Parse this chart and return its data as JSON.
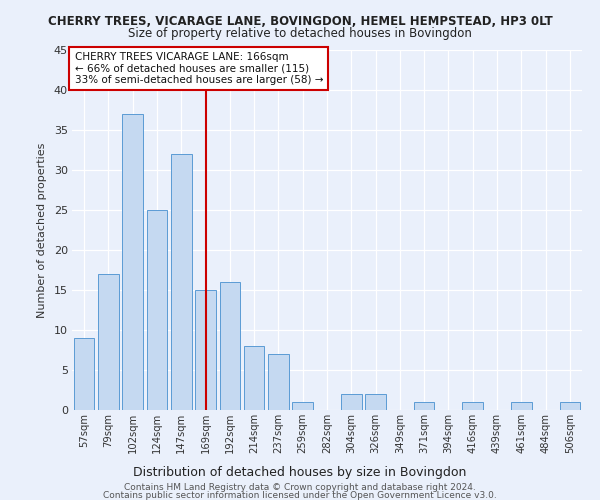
{
  "title": "CHERRY TREES, VICARAGE LANE, BOVINGDON, HEMEL HEMPSTEAD, HP3 0LT",
  "subtitle": "Size of property relative to detached houses in Bovingdon",
  "xlabel": "Distribution of detached houses by size in Bovingdon",
  "ylabel": "Number of detached properties",
  "categories": [
    "57sqm",
    "79sqm",
    "102sqm",
    "124sqm",
    "147sqm",
    "169sqm",
    "192sqm",
    "214sqm",
    "237sqm",
    "259sqm",
    "282sqm",
    "304sqm",
    "326sqm",
    "349sqm",
    "371sqm",
    "394sqm",
    "416sqm",
    "439sqm",
    "461sqm",
    "484sqm",
    "506sqm"
  ],
  "values": [
    9,
    17,
    37,
    25,
    32,
    15,
    16,
    8,
    7,
    1,
    0,
    2,
    2,
    0,
    1,
    0,
    1,
    0,
    1,
    0,
    1
  ],
  "bar_color": "#c5d9f1",
  "bar_edge_color": "#5b9bd5",
  "red_line_index": 5,
  "annotation_title": "CHERRY TREES VICARAGE LANE: 166sqm",
  "annotation_line1": "← 66% of detached houses are smaller (115)",
  "annotation_line2": "33% of semi-detached houses are larger (58) →",
  "ylim": [
    0,
    45
  ],
  "yticks": [
    0,
    5,
    10,
    15,
    20,
    25,
    30,
    35,
    40,
    45
  ],
  "footer1": "Contains HM Land Registry data © Crown copyright and database right 2024.",
  "footer2": "Contains public sector information licensed under the Open Government Licence v3.0.",
  "bg_color": "#eaf0fb",
  "grid_color": "#ffffff",
  "annotation_box_color": "#ffffff",
  "annotation_box_edge": "#cc0000",
  "title_fontsize": 8.5,
  "subtitle_fontsize": 8.5
}
